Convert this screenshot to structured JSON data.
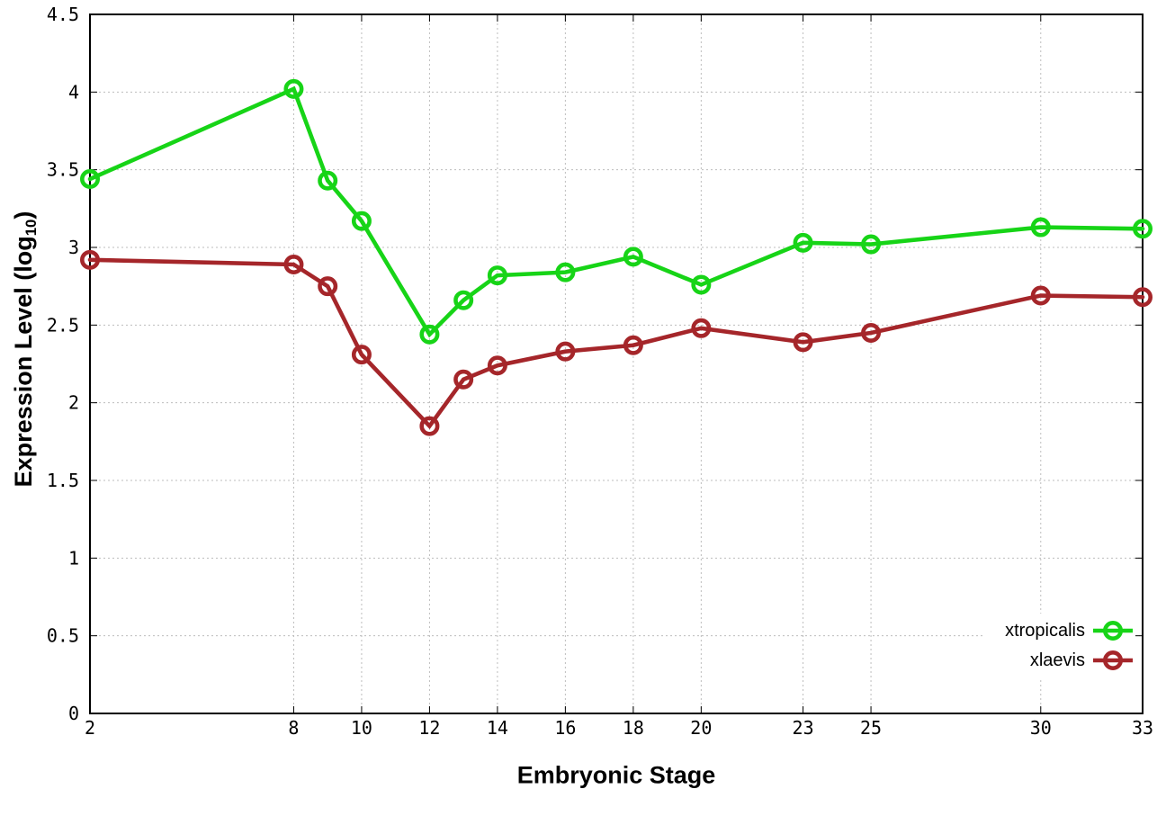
{
  "chart_data": {
    "type": "line",
    "title": "",
    "xlabel": "Embryonic Stage",
    "ylabel": "Expression Level (log10)",
    "ylabel_parts": {
      "pre": "Expression Level (log",
      "sub": "10",
      "post": ")"
    },
    "x": [
      2,
      8,
      9,
      10,
      12,
      13,
      14,
      16,
      18,
      20,
      23,
      25,
      30,
      33
    ],
    "xticks": [
      2,
      8,
      10,
      12,
      14,
      16,
      18,
      20,
      23,
      25,
      30,
      33
    ],
    "yticks": [
      0,
      0.5,
      1,
      1.5,
      2,
      2.5,
      3,
      3.5,
      4,
      4.5
    ],
    "xlim": [
      2,
      33
    ],
    "ylim": [
      0,
      4.5
    ],
    "grid": true,
    "legend_position": "bottom-right",
    "series": [
      {
        "name": "xtropicalis",
        "color": "#17d417",
        "values": [
          3.44,
          4.02,
          3.43,
          3.17,
          2.44,
          2.66,
          2.82,
          2.84,
          2.94,
          2.76,
          3.03,
          3.02,
          3.13,
          3.12
        ]
      },
      {
        "name": "xlaevis",
        "color": "#a5262a",
        "values": [
          2.92,
          2.89,
          2.75,
          2.31,
          1.85,
          2.15,
          2.24,
          2.33,
          2.37,
          2.48,
          2.39,
          2.45,
          2.69,
          2.68
        ]
      }
    ],
    "style": {
      "grid_color": "#bdbdbd",
      "border_color": "#000000",
      "background": "#ffffff",
      "line_width": 4.6,
      "marker": "open-circle"
    }
  }
}
